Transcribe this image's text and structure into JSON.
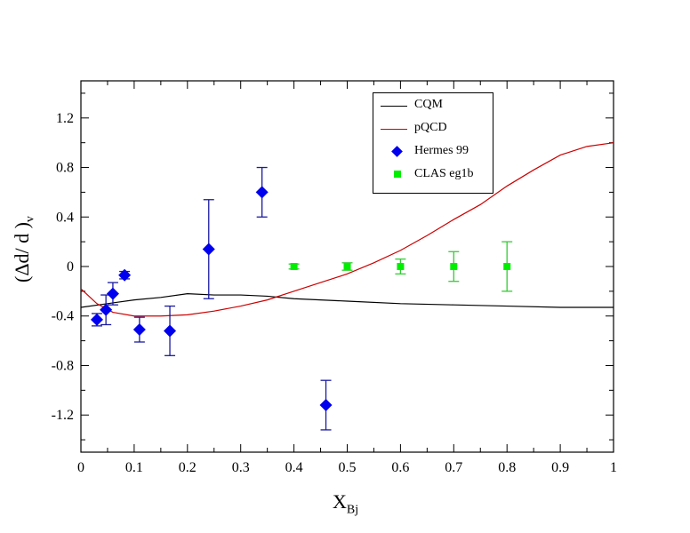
{
  "chart_data": {
    "type": "scatter",
    "xlabel": "X",
    "xlabel_sub": "Bj",
    "ylabel": "(Δd/ d )",
    "ylabel_sub": "v",
    "xlim": [
      0,
      1
    ],
    "ylim": [
      -1.5,
      1.5
    ],
    "xticks": [
      "0",
      "0.1",
      "0.2",
      "0.3",
      "0.4",
      "0.5",
      "0.6",
      "0.7",
      "0.8",
      "0.9",
      "1"
    ],
    "yticks": [
      "-1.2",
      "-0.8",
      "-0.4",
      "0",
      "0.4",
      "0.8",
      "1.2"
    ],
    "grid": false,
    "legend_position": "top-right",
    "series": [
      {
        "name": "CQM",
        "kind": "line",
        "color": "#000000",
        "x": [
          0,
          0.05,
          0.1,
          0.15,
          0.2,
          0.25,
          0.3,
          0.35,
          0.4,
          0.5,
          0.6,
          0.7,
          0.8,
          0.9,
          1
        ],
        "y": [
          -0.33,
          -0.3,
          -0.27,
          -0.25,
          -0.22,
          -0.23,
          -0.23,
          -0.24,
          -0.26,
          -0.28,
          -0.3,
          -0.31,
          -0.32,
          -0.33,
          -0.33
        ]
      },
      {
        "name": "pQCD",
        "kind": "line",
        "color": "#cc0000",
        "x": [
          0,
          0.03,
          0.06,
          0.1,
          0.15,
          0.2,
          0.25,
          0.3,
          0.35,
          0.4,
          0.45,
          0.5,
          0.55,
          0.6,
          0.65,
          0.7,
          0.75,
          0.8,
          0.85,
          0.9,
          0.95,
          1
        ],
        "y": [
          -0.18,
          -0.3,
          -0.37,
          -0.4,
          -0.4,
          -0.39,
          -0.36,
          -0.32,
          -0.27,
          -0.2,
          -0.13,
          -0.06,
          0.03,
          0.13,
          0.25,
          0.38,
          0.5,
          0.65,
          0.78,
          0.9,
          0.97,
          1.0
        ]
      },
      {
        "name": "Hermes 99",
        "kind": "points",
        "marker": "diamond",
        "color": "#0000ee",
        "errcolor": "#1a1aa0",
        "x": [
          0.03,
          0.047,
          0.06,
          0.082,
          0.11,
          0.167,
          0.24,
          0.34,
          0.46
        ],
        "y": [
          -0.43,
          -0.35,
          -0.22,
          -0.07,
          -0.51,
          -0.52,
          0.14,
          0.6,
          -1.12
        ],
        "err": [
          0.05,
          0.12,
          0.09,
          0.03,
          0.1,
          0.2,
          0.4,
          0.2,
          0.2
        ]
      },
      {
        "name": "CLAS eg1b",
        "kind": "points",
        "marker": "square",
        "color": "#00ee00",
        "errcolor": "#33cc33",
        "x": [
          0.4,
          0.5,
          0.6,
          0.7,
          0.8
        ],
        "y": [
          0,
          0,
          0,
          0,
          0
        ],
        "err": [
          0.02,
          0.03,
          0.06,
          0.12,
          0.2
        ]
      }
    ]
  }
}
